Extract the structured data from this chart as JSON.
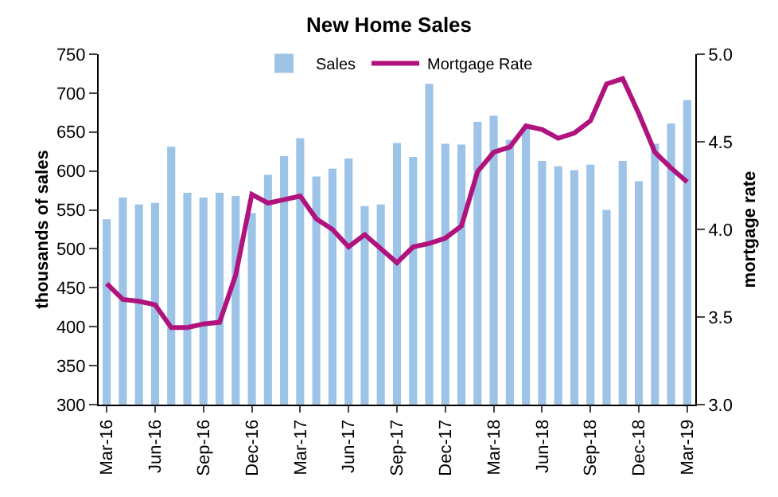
{
  "chart_data": {
    "type": "bar",
    "title": "New Home Sales",
    "ylabel": "thousands of sales",
    "y2label": "mortgage rate",
    "categories": [
      "Mar-16",
      null,
      null,
      "Jun-16",
      null,
      null,
      "Sep-16",
      null,
      null,
      "Dec-16",
      null,
      null,
      "Mar-17",
      null,
      null,
      "Jun-17",
      null,
      null,
      "Sep-17",
      null,
      null,
      "Dec-17",
      null,
      null,
      "Mar-18",
      null,
      null,
      "Jun-18",
      null,
      null,
      "Sep-18",
      null,
      null,
      "Dec-18",
      null,
      null,
      "Mar-19"
    ],
    "series": [
      {
        "name": "Sales",
        "color": "#9dc3e6",
        "values": [
          538,
          566,
          557,
          559,
          631,
          572,
          566,
          572,
          568,
          546,
          595,
          619,
          642,
          593,
          603,
          616,
          555,
          557,
          636,
          618,
          712,
          635,
          634,
          663,
          671,
          640,
          657,
          613,
          606,
          601,
          608,
          550,
          613,
          587,
          635,
          661,
          691
        ]
      },
      {
        "name": "Mortgage Rate",
        "type": "line",
        "axis": "y2",
        "color": "#b0137e",
        "values": [
          3.69,
          3.6,
          3.59,
          3.57,
          3.44,
          3.44,
          3.46,
          3.47,
          3.74,
          4.2,
          4.15,
          4.17,
          4.19,
          4.06,
          4.0,
          3.9,
          3.97,
          3.89,
          3.81,
          3.9,
          3.92,
          3.95,
          4.02,
          4.33,
          4.44,
          4.47,
          4.59,
          4.57,
          4.52,
          4.55,
          4.62,
          4.83,
          4.86,
          4.66,
          4.44,
          4.35,
          4.27
        ]
      }
    ],
    "ylim": [
      300,
      750
    ],
    "yticks": [
      300,
      350,
      400,
      450,
      500,
      550,
      600,
      650,
      700,
      750
    ],
    "y2lim": [
      3.0,
      5.0
    ],
    "y2ticks": [
      {
        "value": 3.0,
        "label": "3.0"
      },
      {
        "value": 3.5,
        "label": "3.5"
      },
      {
        "value": 4.0,
        "label": "4.0"
      },
      {
        "value": 4.5,
        "label": "4.5"
      },
      {
        "value": 5.0,
        "label": "5.0"
      }
    ],
    "grid": false,
    "legend": "top",
    "line_style": "solid",
    "marker": "none"
  }
}
